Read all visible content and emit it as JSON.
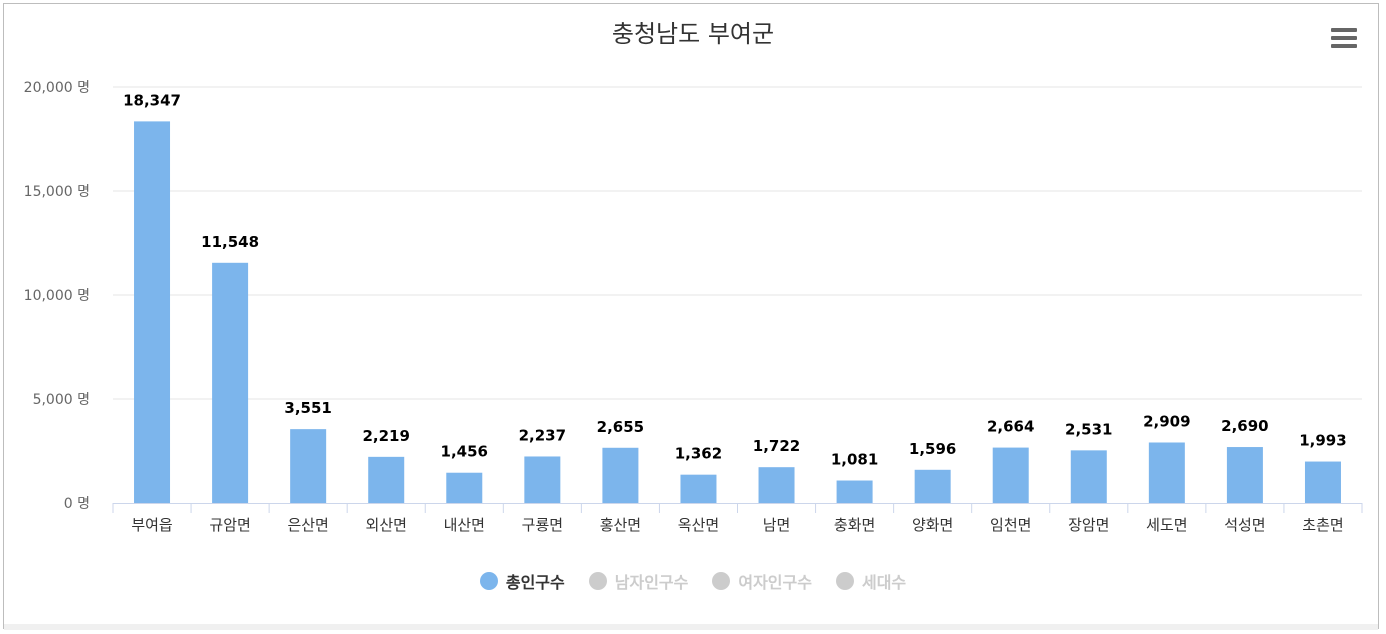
{
  "chart_data": {
    "type": "bar",
    "title": "충청남도 부여군",
    "categories": [
      "부여읍",
      "규암면",
      "은산면",
      "외산면",
      "내산면",
      "구룡면",
      "홍산면",
      "옥산면",
      "남면",
      "충화면",
      "양화면",
      "임천면",
      "장암면",
      "세도면",
      "석성면",
      "초촌면"
    ],
    "series": [
      {
        "name": "총인구수",
        "values": [
          18347,
          11548,
          3551,
          2219,
          1456,
          2237,
          2655,
          1362,
          1722,
          1081,
          1596,
          2664,
          2531,
          2909,
          2690,
          1993
        ],
        "color": "#7cb5ec",
        "visible": true
      }
    ],
    "ylim": [
      0,
      20000
    ],
    "yticks": [
      0,
      5000,
      10000,
      15000,
      20000
    ],
    "ytick_labels": [
      "0 명",
      "5,000 명",
      "10,000 명",
      "15,000 명",
      "20,000 명"
    ],
    "data_labels": [
      "18,347",
      "11,548",
      "3,551",
      "2,219",
      "1,456",
      "2,237",
      "2,655",
      "1,362",
      "1,722",
      "1,081",
      "1,596",
      "2,664",
      "2,531",
      "2,909",
      "2,690",
      "1,993"
    ],
    "grid": true,
    "legend_position": "bottom-center"
  },
  "legend": {
    "items": [
      {
        "label": "총인구수",
        "color": "#7cb5ec",
        "active": true
      },
      {
        "label": "남자인구수",
        "color": "#cccccc",
        "active": false
      },
      {
        "label": "여자인구수",
        "color": "#cccccc",
        "active": false
      },
      {
        "label": "세대수",
        "color": "#cccccc",
        "active": false
      }
    ]
  },
  "toolbar": {
    "menu_icon": "hamburger-menu-icon"
  }
}
